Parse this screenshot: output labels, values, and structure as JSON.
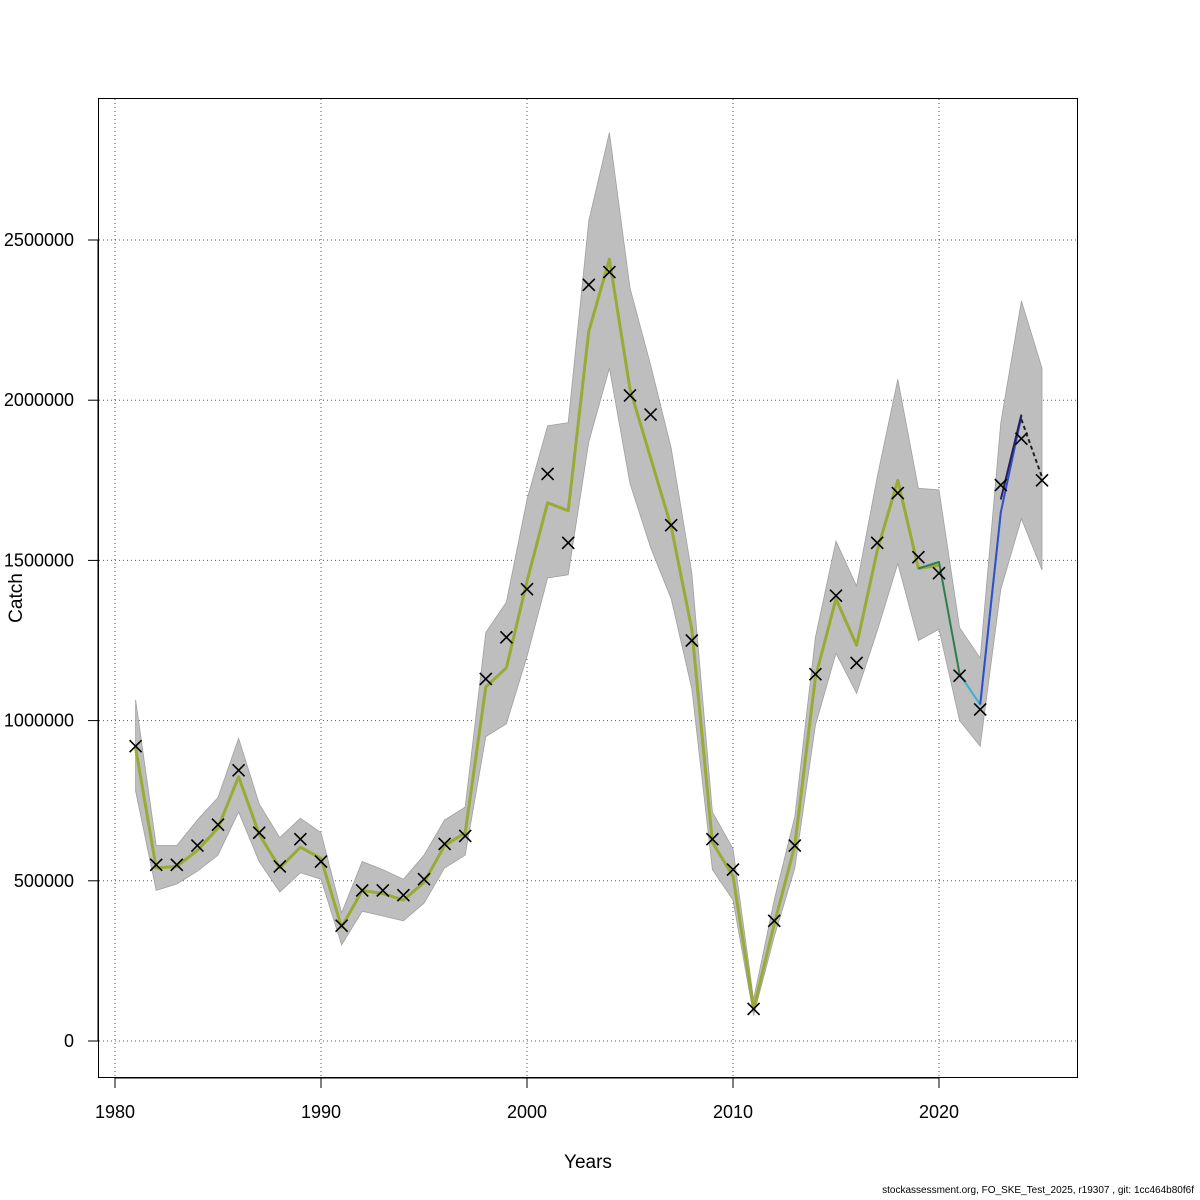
{
  "chart_data": {
    "type": "line",
    "xlabel": "Years",
    "ylabel": "Catch",
    "xlim": [
      1980,
      2026
    ],
    "ylim": [
      0,
      2900000
    ],
    "x_ticks": [
      1980,
      1990,
      2000,
      2010,
      2020
    ],
    "y_ticks": [
      0,
      500000,
      1000000,
      1500000,
      2000000,
      2500000
    ],
    "y_tick_labels": [
      "0",
      "500000",
      "1000000",
      "1500000",
      "2000000",
      "2500000"
    ],
    "grid": true,
    "colors": {
      "band": "#bebebe",
      "band_edge": "#a0a0a0",
      "main_line": "#9aaa35",
      "grid": "#555555"
    },
    "observed": {
      "marker": "x",
      "x": [
        1981,
        1982,
        1983,
        1984,
        1985,
        1986,
        1987,
        1988,
        1989,
        1990,
        1991,
        1992,
        1993,
        1994,
        1995,
        1996,
        1997,
        1998,
        1999,
        2000,
        2001,
        2002,
        2003,
        2004,
        2005,
        2006,
        2007,
        2008,
        2009,
        2010,
        2011,
        2012,
        2013,
        2014,
        2015,
        2016,
        2017,
        2018,
        2019,
        2020,
        2021,
        2022,
        2023,
        2024,
        2025
      ],
      "y": [
        920000,
        550000,
        550000,
        610000,
        675000,
        845000,
        650000,
        545000,
        630000,
        560000,
        360000,
        470000,
        470000,
        455000,
        505000,
        615000,
        640000,
        1130000,
        1260000,
        1410000,
        1770000,
        1555000,
        2360000,
        2400000,
        2015000,
        1955000,
        1610000,
        1250000,
        630000,
        535000,
        100000,
        375000,
        610000,
        1145000,
        1390000,
        1180000,
        1555000,
        1710000,
        1510000,
        1460000,
        1140000,
        1035000,
        1735000,
        1880000,
        1750000
      ]
    },
    "band": {
      "x": [
        1981,
        1982,
        1983,
        1984,
        1985,
        1986,
        1987,
        1988,
        1989,
        1990,
        1991,
        1992,
        1993,
        1994,
        1995,
        1996,
        1997,
        1998,
        1999,
        2000,
        2001,
        2002,
        2003,
        2004,
        2005,
        2006,
        2007,
        2008,
        2009,
        2010,
        2011,
        2012,
        2013,
        2014,
        2015,
        2016,
        2017,
        2018,
        2019,
        2020,
        2021,
        2022,
        2023,
        2024,
        2025
      ],
      "lower": [
        780000,
        470000,
        490000,
        530000,
        580000,
        715000,
        560000,
        465000,
        525000,
        505000,
        300000,
        405000,
        390000,
        375000,
        430000,
        540000,
        580000,
        950000,
        990000,
        1200000,
        1445000,
        1455000,
        1870000,
        2100000,
        1740000,
        1540000,
        1380000,
        1100000,
        535000,
        440000,
        80000,
        325000,
        540000,
        985000,
        1210000,
        1085000,
        1280000,
        1490000,
        1250000,
        1285000,
        1000000,
        920000,
        1410000,
        1630000,
        1470000
      ],
      "upper": [
        1065000,
        610000,
        610000,
        690000,
        760000,
        945000,
        740000,
        635000,
        695000,
        650000,
        400000,
        560000,
        535000,
        505000,
        580000,
        690000,
        730000,
        1275000,
        1370000,
        1690000,
        1920000,
        1930000,
        2560000,
        2835000,
        2350000,
        2110000,
        1850000,
        1460000,
        715000,
        600000,
        130000,
        440000,
        700000,
        1260000,
        1560000,
        1420000,
        1760000,
        2065000,
        1725000,
        1720000,
        1290000,
        1195000,
        1930000,
        2310000,
        2100000
      ]
    },
    "series": [
      {
        "color": "#9aaa35",
        "x": [
          1981,
          1982,
          1983,
          1984,
          1985,
          1986,
          1987,
          1988,
          1989,
          1990,
          1991,
          1992,
          1993,
          1994,
          1995,
          1996,
          1997,
          1998,
          1999,
          2000,
          2001,
          2002,
          2003,
          2004,
          2005,
          2006,
          2007,
          2008,
          2009,
          2010,
          2011,
          2012,
          2013,
          2014,
          2015,
          2016,
          2017,
          2018,
          2019,
          2020
        ],
        "y": [
          915000,
          540000,
          545000,
          595000,
          665000,
          825000,
          645000,
          540000,
          605000,
          570000,
          355000,
          470000,
          460000,
          440000,
          495000,
          610000,
          650000,
          1105000,
          1165000,
          1435000,
          1680000,
          1655000,
          2215000,
          2440000,
          2035000,
          1820000,
          1605000,
          1285000,
          620000,
          515000,
          100000,
          365000,
          610000,
          1135000,
          1380000,
          1235000,
          1530000,
          1750000,
          1475000,
          1485000
        ]
      },
      {
        "color": "#2e7d4f",
        "x": [
          2019,
          2020,
          2021
        ],
        "y": [
          1475000,
          1495000,
          1145000
        ]
      },
      {
        "color": "#3ab0d0",
        "x": [
          2021,
          2022,
          2023
        ],
        "y": [
          1145000,
          1050000,
          1650000
        ]
      },
      {
        "color": "#3050c8",
        "x": [
          2022,
          2023,
          2024
        ],
        "y": [
          1050000,
          1650000,
          1950000
        ]
      },
      {
        "color": "#2a1f5e",
        "x": [
          2023,
          2024
        ],
        "y": [
          1690000,
          1955000
        ]
      },
      {
        "color": "#222222",
        "dashed": true,
        "x": [
          2024,
          2025
        ],
        "y": [
          1940000,
          1760000
        ]
      }
    ]
  },
  "footer_text": "stockassessment.org, FO_SKE_Test_2025, r19307 , git: 1cc464b80f6f"
}
